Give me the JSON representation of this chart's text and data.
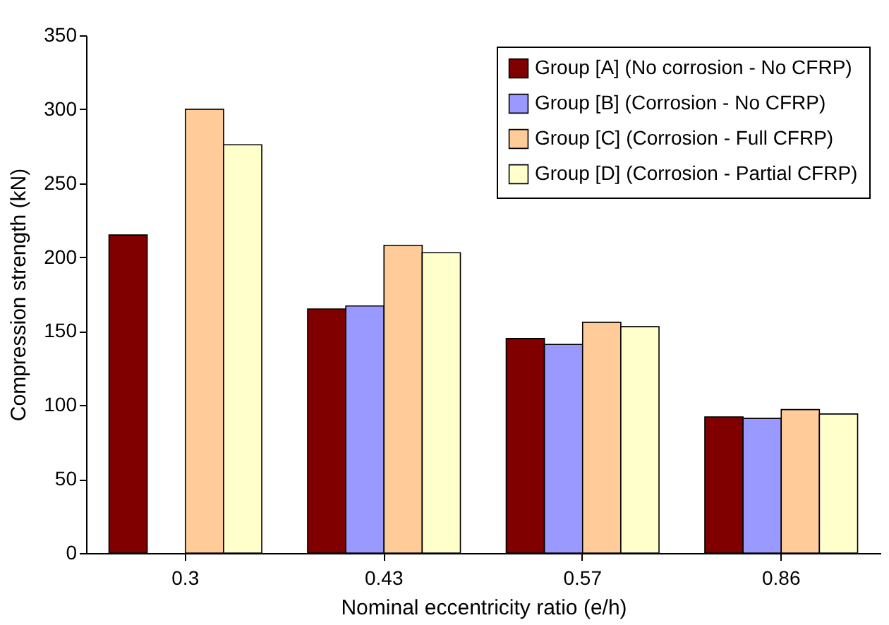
{
  "chart_data": {
    "type": "bar",
    "xlabel": "Nominal eccentricity ratio (e/h)",
    "ylabel": "Compression strength (kN)",
    "categories": [
      "0.3",
      "0.43",
      "0.57",
      "0.86"
    ],
    "series": [
      {
        "name": "Group [A] (No corrosion - No CFRP)",
        "color": "#800000",
        "values": [
          215,
          165,
          145,
          92
        ]
      },
      {
        "name": "Group [B] (Corrosion - No CFRP)",
        "color": "#9999ff",
        "values": [
          null,
          167,
          141,
          91
        ]
      },
      {
        "name": "Group [C] (Corrosion - Full CFRP)",
        "color": "#ffcc99",
        "values": [
          300,
          208,
          156,
          97
        ]
      },
      {
        "name": "Group [D] (Corrosion - Partial CFRP)",
        "color": "#ffffcc",
        "values": [
          276,
          203,
          153,
          94
        ]
      }
    ],
    "ylim": [
      0,
      350
    ],
    "yticks": [
      0,
      50,
      100,
      150,
      200,
      250,
      300,
      350
    ],
    "grid": false,
    "legend": "top right"
  }
}
